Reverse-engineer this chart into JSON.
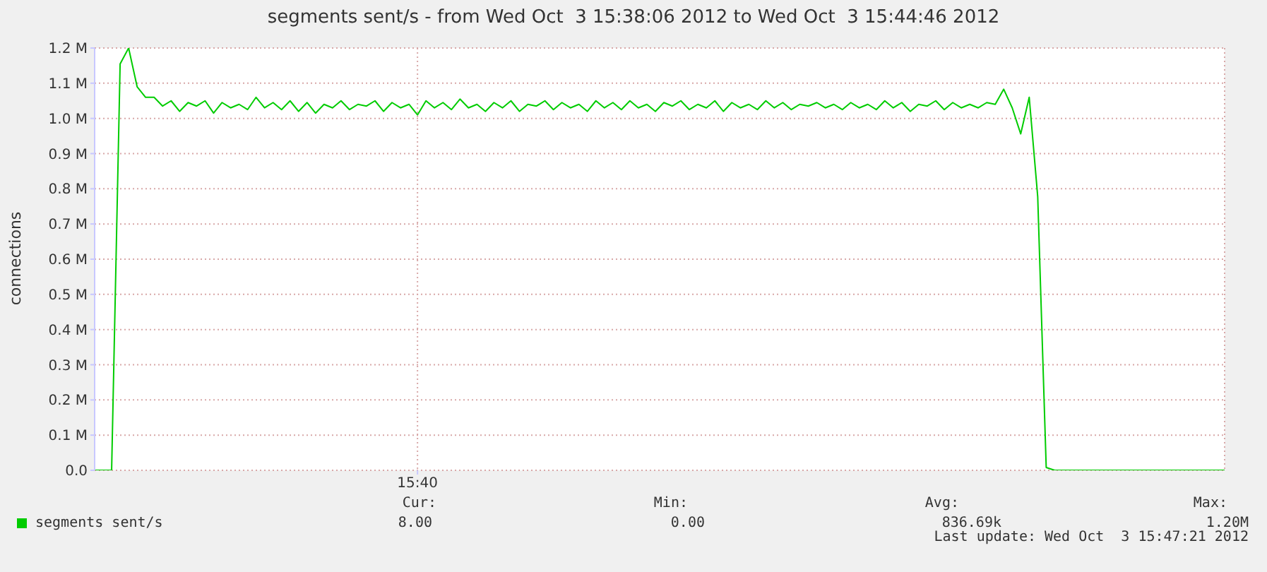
{
  "chart_data": {
    "type": "line",
    "title": "segments sent/s - from Wed Oct  3 15:38:06 2012 to Wed Oct  3 15:44:46 2012",
    "ylabel": "connections",
    "categories": [
      null,
      null,
      null,
      null,
      null,
      null,
      null,
      null,
      null,
      null,
      null,
      null,
      null,
      null,
      null,
      null,
      null,
      null,
      null,
      null,
      null,
      null,
      null,
      null,
      null,
      null,
      null,
      null,
      null,
      null,
      null,
      null,
      null,
      null,
      null,
      null,
      null,
      null,
      "15:40",
      null,
      null,
      null,
      null,
      null,
      null,
      null,
      null,
      null,
      null,
      null,
      null,
      null,
      null,
      null,
      null,
      null,
      null,
      null,
      null,
      null,
      null,
      null,
      null,
      null,
      null,
      null,
      null,
      null,
      null,
      null,
      null,
      null,
      null,
      null,
      null,
      null,
      null,
      null,
      null,
      null,
      null,
      null,
      null,
      null,
      null,
      null,
      null,
      null,
      null,
      null,
      null,
      null,
      null,
      null,
      null,
      null,
      null,
      null,
      null,
      null,
      null,
      null,
      null,
      null,
      null,
      null,
      null,
      null,
      null,
      null,
      null,
      null,
      null,
      null,
      null,
      null,
      null,
      null,
      null,
      null,
      null,
      null,
      null,
      null,
      null,
      null,
      null,
      null,
      null,
      null,
      null,
      null,
      null,
      null
    ],
    "series": [
      {
        "name": "segments sent/s",
        "color": "#00cc00",
        "values": [
          0,
          0,
          0,
          1155000,
          1200000,
          1090000,
          1060000,
          1060000,
          1035000,
          1050000,
          1020000,
          1045000,
          1035000,
          1050000,
          1015000,
          1045000,
          1030000,
          1040000,
          1025000,
          1060000,
          1030000,
          1045000,
          1025000,
          1050000,
          1020000,
          1045000,
          1015000,
          1040000,
          1030000,
          1050000,
          1025000,
          1040000,
          1035000,
          1050000,
          1020000,
          1045000,
          1030000,
          1040000,
          1010000,
          1050000,
          1030000,
          1045000,
          1025000,
          1055000,
          1030000,
          1040000,
          1020000,
          1045000,
          1030000,
          1050000,
          1020000,
          1040000,
          1035000,
          1050000,
          1025000,
          1045000,
          1030000,
          1040000,
          1020000,
          1050000,
          1030000,
          1045000,
          1025000,
          1050000,
          1030000,
          1040000,
          1020000,
          1045000,
          1035000,
          1050000,
          1025000,
          1040000,
          1030000,
          1050000,
          1020000,
          1045000,
          1030000,
          1040000,
          1025000,
          1050000,
          1030000,
          1045000,
          1025000,
          1040000,
          1035000,
          1045000,
          1030000,
          1040000,
          1025000,
          1045000,
          1030000,
          1040000,
          1025000,
          1050000,
          1030000,
          1045000,
          1020000,
          1040000,
          1035000,
          1050000,
          1025000,
          1045000,
          1030000,
          1040000,
          1030000,
          1045000,
          1040000,
          1083000,
          1030000,
          956000,
          1060000,
          778000,
          8000,
          0,
          0,
          0,
          0,
          0,
          0,
          0,
          0,
          0,
          0,
          0,
          0,
          0,
          0,
          0,
          0,
          0,
          0,
          0,
          0,
          0
        ]
      }
    ],
    "ylim": [
      0,
      1200000
    ],
    "yticks": [
      {
        "value": 0,
        "label": "0.0"
      },
      {
        "value": 100000,
        "label": "0.1 M"
      },
      {
        "value": 200000,
        "label": "0.2 M"
      },
      {
        "value": 300000,
        "label": "0.3 M"
      },
      {
        "value": 400000,
        "label": "0.4 M"
      },
      {
        "value": 500000,
        "label": "0.5 M"
      },
      {
        "value": 600000,
        "label": "0.6 M"
      },
      {
        "value": 700000,
        "label": "0.7 M"
      },
      {
        "value": 800000,
        "label": "0.8 M"
      },
      {
        "value": 900000,
        "label": "0.9 M"
      },
      {
        "value": 1000000,
        "label": "1.0 M"
      },
      {
        "value": 1100000,
        "label": "1.1 M"
      },
      {
        "value": 1200000,
        "label": "1.2 M"
      }
    ],
    "grid": true,
    "legend": "bottom left",
    "marker": "none",
    "line_style": "solid",
    "annotations": [
      "Cur:",
      "Min:",
      "Avg:",
      "Max:",
      "8.00",
      "0.00",
      "836.69k",
      "1.20M",
      "Last update: Wed Oct  3 15:47:21 2012"
    ]
  }
}
